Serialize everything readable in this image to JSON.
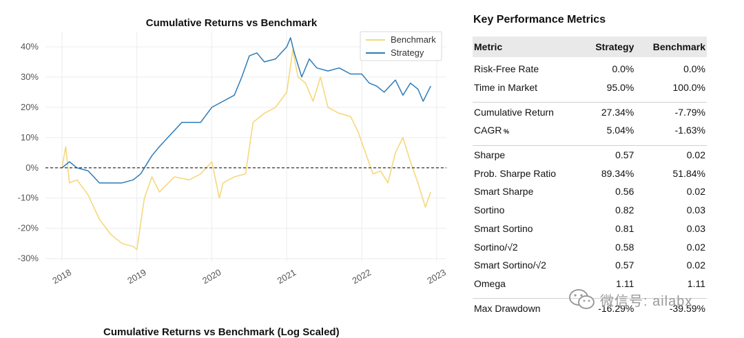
{
  "chart_data": {
    "type": "line",
    "title": "Cumulative Returns vs Benchmark",
    "xlabel": "",
    "ylabel": "",
    "x_ticks": [
      "2018",
      "2019",
      "2020",
      "2021",
      "2022",
      "2023"
    ],
    "y_ticks": [
      "-30%",
      "-20%",
      "-10%",
      "0%",
      "10%",
      "20%",
      "30%",
      "40%"
    ],
    "ylim": [
      -0.31,
      0.45
    ],
    "xlim": [
      2017.78,
      2023.13
    ],
    "grid": true,
    "legend_position": "top-right",
    "reference_line": 0,
    "series": [
      {
        "name": "Benchmark",
        "color": "#f5d87a",
        "x": [
          2018.0,
          2018.05,
          2018.1,
          2018.2,
          2018.35,
          2018.5,
          2018.65,
          2018.8,
          2018.95,
          2019.0,
          2019.1,
          2019.2,
          2019.3,
          2019.5,
          2019.7,
          2019.85,
          2020.0,
          2020.1,
          2020.15,
          2020.3,
          2020.45,
          2020.55,
          2020.7,
          2020.85,
          2021.0,
          2021.08,
          2021.15,
          2021.25,
          2021.35,
          2021.45,
          2021.55,
          2021.7,
          2021.85,
          2021.95,
          2022.05,
          2022.15,
          2022.25,
          2022.35,
          2022.45,
          2022.55,
          2022.65,
          2022.75,
          2022.85,
          2022.92
        ],
        "y": [
          0.0,
          0.07,
          -0.05,
          -0.04,
          -0.09,
          -0.17,
          -0.22,
          -0.25,
          -0.26,
          -0.27,
          -0.1,
          -0.03,
          -0.08,
          -0.03,
          -0.04,
          -0.02,
          0.02,
          -0.1,
          -0.05,
          -0.03,
          -0.02,
          0.15,
          0.18,
          0.2,
          0.25,
          0.39,
          0.3,
          0.28,
          0.22,
          0.3,
          0.2,
          0.18,
          0.17,
          0.12,
          0.05,
          -0.02,
          -0.01,
          -0.05,
          0.05,
          0.1,
          0.02,
          -0.05,
          -0.13,
          -0.08
        ]
      },
      {
        "name": "Strategy",
        "color": "#2b7bb9",
        "x": [
          2018.0,
          2018.1,
          2018.2,
          2018.35,
          2018.5,
          2018.65,
          2018.8,
          2018.95,
          2019.05,
          2019.1,
          2019.2,
          2019.3,
          2019.45,
          2019.6,
          2019.7,
          2019.85,
          2020.0,
          2020.15,
          2020.3,
          2020.4,
          2020.5,
          2020.6,
          2020.7,
          2020.85,
          2021.0,
          2021.05,
          2021.1,
          2021.2,
          2021.3,
          2021.4,
          2021.55,
          2021.7,
          2021.85,
          2022.0,
          2022.1,
          2022.2,
          2022.3,
          2022.45,
          2022.55,
          2022.65,
          2022.75,
          2022.82,
          2022.88,
          2022.92
        ],
        "y": [
          0.0,
          0.02,
          0.0,
          -0.01,
          -0.05,
          -0.05,
          -0.05,
          -0.04,
          -0.02,
          0.0,
          0.04,
          0.07,
          0.11,
          0.15,
          0.15,
          0.15,
          0.2,
          0.22,
          0.24,
          0.3,
          0.37,
          0.38,
          0.35,
          0.36,
          0.4,
          0.43,
          0.38,
          0.3,
          0.36,
          0.33,
          0.32,
          0.33,
          0.31,
          0.31,
          0.28,
          0.27,
          0.25,
          0.29,
          0.24,
          0.28,
          0.26,
          0.22,
          0.25,
          0.27
        ]
      }
    ]
  },
  "second_chart_title": "Cumulative Returns vs Benchmark (Log Scaled)",
  "metrics": {
    "title": "Key Performance Metrics",
    "headers": [
      "Metric",
      "Strategy",
      "Benchmark"
    ],
    "groups": [
      [
        [
          "Risk-Free Rate",
          "0.0%",
          "0.0%"
        ],
        [
          "Time in Market",
          "95.0%",
          "100.0%"
        ]
      ],
      [
        [
          "Cumulative Return",
          "27.34%",
          "-7.79%"
        ],
        [
          "CAGR",
          "5.04%",
          "-1.63%"
        ]
      ],
      [
        [
          "Sharpe",
          "0.57",
          "0.02"
        ],
        [
          "Prob. Sharpe Ratio",
          "89.34%",
          "51.84%"
        ],
        [
          "Smart Sharpe",
          "0.56",
          "0.02"
        ],
        [
          "Sortino",
          "0.82",
          "0.03"
        ],
        [
          "Smart Sortino",
          "0.81",
          "0.03"
        ],
        [
          "Sortino/√2",
          "0.58",
          "0.02"
        ],
        [
          "Smart Sortino/√2",
          "0.57",
          "0.02"
        ],
        [
          "Omega",
          "1.11",
          "1.11"
        ]
      ],
      [
        [
          "Max Drawdown",
          "-16.29%",
          "-39.59%"
        ]
      ]
    ],
    "cagr_suffix": "%"
  },
  "watermark": {
    "text": "微信号: ailabx",
    "icon": "wechat-icon"
  }
}
